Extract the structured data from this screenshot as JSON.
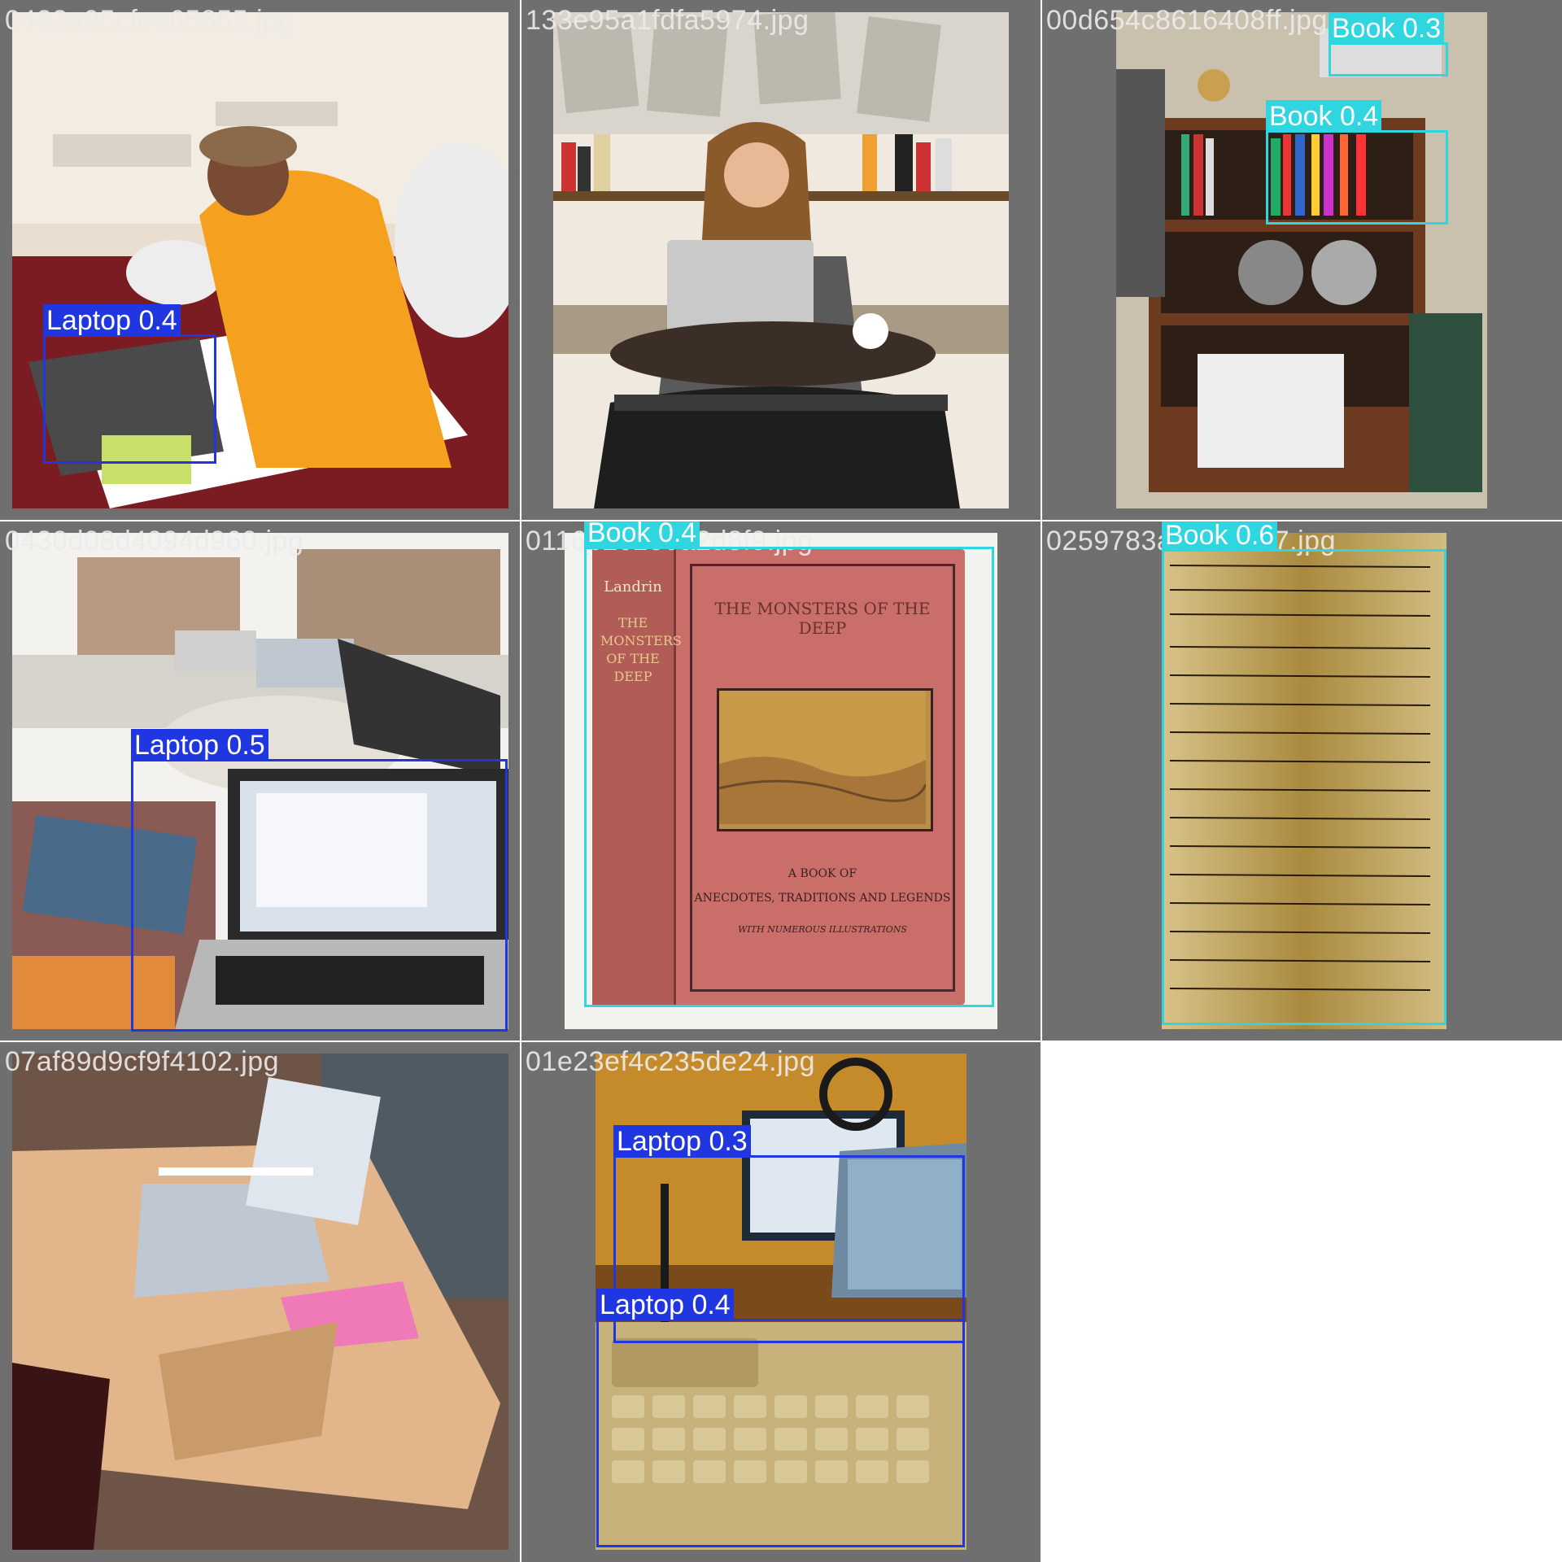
{
  "grid": {
    "cells": [
      {
        "filename": "0433a95cfee65855.jpg"
      },
      {
        "filename": "133e95a1fdfa5974.jpg"
      },
      {
        "filename": "00d654c8616408ff.jpg"
      },
      {
        "filename": "0430d08d4094d960.jpg"
      },
      {
        "filename": "0116b2c1e0a2d8f9.jpg"
      },
      {
        "filename": "0259783a6f0cdeb7.jpg"
      },
      {
        "filename": "07af89d9cf9f4102.jpg"
      },
      {
        "filename": "01e23ef4c235de24.jpg"
      }
    ]
  },
  "detections": {
    "c1_laptop": "Laptop 0.4",
    "c2_none": "",
    "c3_book_a": "Book 0.3",
    "c3_book_b": "Book 0.4",
    "c4_laptop": "Laptop 0.5",
    "c5_book": "Book 0.4",
    "c6_book": "Book 0.6",
    "c8_laptop_a": "Laptop 0.3",
    "c8_laptop_b": "Laptop 0.4"
  },
  "book_cover": {
    "spine_author": "Landrin",
    "spine_title": "THE MONSTERS OF THE DEEP",
    "title": "THE MONSTERS OF THE DEEP",
    "subtitle": "A BOOK OF",
    "subtitle2": "ANECDOTES, TRADITIONS AND LEGENDS",
    "subtitle3": "WITH NUMEROUS ILLUSTRATIONS"
  },
  "colors": {
    "laptop": "#1f36e0",
    "book": "#2fd6df",
    "tile_bg": "#6f6f6f"
  }
}
